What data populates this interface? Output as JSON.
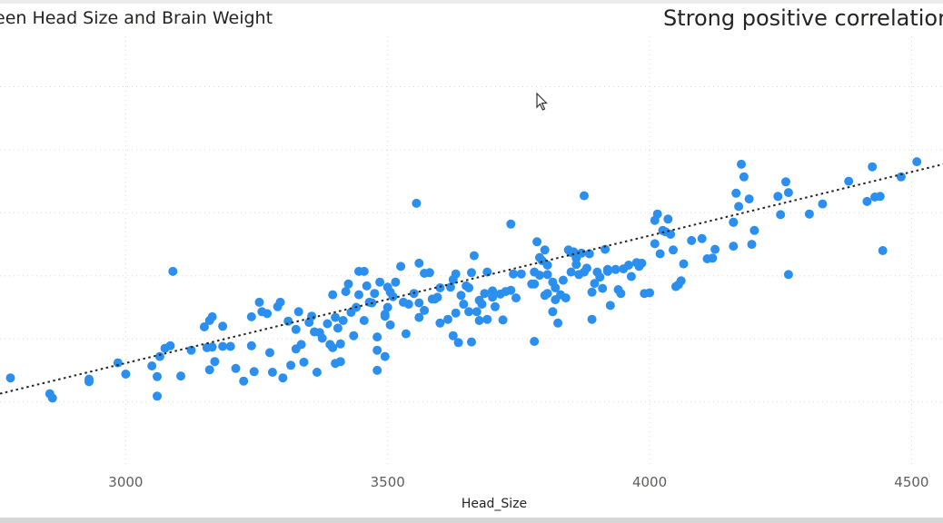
{
  "header": {
    "title": "een Head Size and Brain Weight",
    "subtitle": "Strong positive correlation"
  },
  "chart_data": {
    "type": "scatter",
    "title": "een Head Size and Brain Weight",
    "subtitle": "Strong positive correlation",
    "xlabel": "Head_Size",
    "ylabel": "",
    "xlim": [
      2760,
      4560
    ],
    "ylim": [
      955,
      1635
    ],
    "x_ticks": [
      3000,
      3500,
      4000,
      4500
    ],
    "x_tick_labels": [
      "3000",
      "3500",
      "4000",
      "4500"
    ],
    "y_gridlines": [
      1055,
      1155,
      1255,
      1355,
      1455,
      1555
    ],
    "grid": true,
    "trendline": {
      "style": "dotted",
      "x": [
        2750,
        4560
      ],
      "y": [
        1066,
        1432
      ]
    },
    "series": [
      {
        "color": "#2b8ff0",
        "points": [
          [
            2780,
            1093
          ],
          [
            2855,
            1068
          ],
          [
            2860,
            1061
          ],
          [
            2930,
            1091
          ],
          [
            2930,
            1087
          ],
          [
            2985,
            1117
          ],
          [
            3000,
            1099
          ],
          [
            3060,
            1064
          ],
          [
            3060,
            1095
          ],
          [
            3085,
            1144
          ],
          [
            3065,
            1127
          ],
          [
            3050,
            1112
          ],
          [
            3075,
            1140
          ],
          [
            3090,
            1262
          ],
          [
            3105,
            1096
          ],
          [
            3125,
            1137
          ],
          [
            3150,
            1174
          ],
          [
            3155,
            1141
          ],
          [
            3160,
            1106
          ],
          [
            3160,
            1184
          ],
          [
            3165,
            1190
          ],
          [
            3170,
            1119
          ],
          [
            3165,
            1142
          ],
          [
            3185,
            1175
          ],
          [
            3185,
            1143
          ],
          [
            3200,
            1143
          ],
          [
            3210,
            1108
          ],
          [
            3225,
            1088
          ],
          [
            3240,
            1190
          ],
          [
            3240,
            1144
          ],
          [
            3245,
            1103
          ],
          [
            3255,
            1213
          ],
          [
            3260,
            1198
          ],
          [
            3270,
            1195
          ],
          [
            3275,
            1133
          ],
          [
            3280,
            1102
          ],
          [
            3290,
            1206
          ],
          [
            3295,
            1213
          ],
          [
            3300,
            1093
          ],
          [
            3310,
            1183
          ],
          [
            3315,
            1113
          ],
          [
            3325,
            1139
          ],
          [
            3325,
            1170
          ],
          [
            3330,
            1198
          ],
          [
            3335,
            1146
          ],
          [
            3340,
            1118
          ],
          [
            3350,
            1181
          ],
          [
            3355,
            1191
          ],
          [
            3360,
            1166
          ],
          [
            3365,
            1102
          ],
          [
            3370,
            1165
          ],
          [
            3375,
            1156
          ],
          [
            3385,
            1179
          ],
          [
            3390,
            1146
          ],
          [
            3395,
            1225
          ],
          [
            3395,
            1141
          ],
          [
            3400,
            1116
          ],
          [
            3400,
            1189
          ],
          [
            3405,
            1172
          ],
          [
            3410,
            1119
          ],
          [
            3410,
            1147
          ],
          [
            3415,
            1184
          ],
          [
            3420,
            1230
          ],
          [
            3425,
            1242
          ],
          [
            3430,
            1197
          ],
          [
            3435,
            1160
          ],
          [
            3440,
            1205
          ],
          [
            3445,
            1262
          ],
          [
            3445,
            1225
          ],
          [
            3455,
            1262
          ],
          [
            3455,
            1184
          ],
          [
            3460,
            1239
          ],
          [
            3465,
            1213
          ],
          [
            3470,
            1212
          ],
          [
            3475,
            1227
          ],
          [
            3480,
            1137
          ],
          [
            3480,
            1105
          ],
          [
            3480,
            1158
          ],
          [
            3485,
            1245
          ],
          [
            3495,
            1127
          ],
          [
            3495,
            1191
          ],
          [
            3495,
            1194
          ],
          [
            3500,
            1205
          ],
          [
            3500,
            1237
          ],
          [
            3505,
            1229
          ],
          [
            3505,
            1177
          ],
          [
            3510,
            1222
          ],
          [
            3515,
            1245
          ],
          [
            3525,
            1270
          ],
          [
            3530,
            1213
          ],
          [
            3535,
            1163
          ],
          [
            3540,
            1210
          ],
          [
            3550,
            1227
          ],
          [
            3555,
            1370
          ],
          [
            3560,
            1189
          ],
          [
            3560,
            1212
          ],
          [
            3560,
            1275
          ],
          [
            3570,
            1259
          ],
          [
            3570,
            1200
          ],
          [
            3580,
            1260
          ],
          [
            3585,
            1218
          ],
          [
            3590,
            1218
          ],
          [
            3595,
            1221
          ],
          [
            3600,
            1236
          ],
          [
            3600,
            1180
          ],
          [
            3615,
            1186
          ],
          [
            3620,
            1237
          ],
          [
            3625,
            1249
          ],
          [
            3625,
            1160
          ],
          [
            3630,
            1258
          ],
          [
            3630,
            1196
          ],
          [
            3635,
            1149
          ],
          [
            3640,
            1224
          ],
          [
            3645,
            1210
          ],
          [
            3650,
            1239
          ],
          [
            3655,
            1236
          ],
          [
            3655,
            1198
          ],
          [
            3660,
            1260
          ],
          [
            3660,
            1150
          ],
          [
            3665,
            1287
          ],
          [
            3670,
            1198
          ],
          [
            3675,
            1216
          ],
          [
            3675,
            1184
          ],
          [
            3680,
            1210
          ],
          [
            3685,
            1227
          ],
          [
            3690,
            1261
          ],
          [
            3690,
            1186
          ],
          [
            3700,
            1231
          ],
          [
            3700,
            1221
          ],
          [
            3705,
            1206
          ],
          [
            3715,
            1226
          ],
          [
            3720,
            1185
          ],
          [
            3725,
            1230
          ],
          [
            3735,
            1337
          ],
          [
            3735,
            1232
          ],
          [
            3740,
            1258
          ],
          [
            3745,
            1220
          ],
          [
            3755,
            1258
          ],
          [
            3775,
            1242
          ],
          [
            3780,
            1242
          ],
          [
            3780,
            1151
          ],
          [
            3780,
            1261
          ],
          [
            3785,
            1309
          ],
          [
            3790,
            1256
          ],
          [
            3790,
            1284
          ],
          [
            3795,
            1279
          ],
          [
            3800,
            1224
          ],
          [
            3800,
            1296
          ],
          [
            3805,
            1272
          ],
          [
            3805,
            1227
          ],
          [
            3805,
            1257
          ],
          [
            3815,
            1198
          ],
          [
            3815,
            1245
          ],
          [
            3820,
            1217
          ],
          [
            3820,
            1236
          ],
          [
            3825,
            1180
          ],
          [
            3830,
            1225
          ],
          [
            3835,
            1248
          ],
          [
            3840,
            1220
          ],
          [
            3845,
            1296
          ],
          [
            3850,
            1261
          ],
          [
            3850,
            1292
          ],
          [
            3855,
            1293
          ],
          [
            3860,
            1283
          ],
          [
            3860,
            1273
          ],
          [
            3865,
            1257
          ],
          [
            3870,
            1291
          ],
          [
            3875,
            1382
          ],
          [
            3875,
            1261
          ],
          [
            3880,
            1267
          ],
          [
            3885,
            1290
          ],
          [
            3890,
            1229
          ],
          [
            3890,
            1186
          ],
          [
            3895,
            1243
          ],
          [
            3900,
            1261
          ],
          [
            3905,
            1253
          ],
          [
            3910,
            1235
          ],
          [
            3915,
            1297
          ],
          [
            3920,
            1265
          ],
          [
            3920,
            1262
          ],
          [
            3925,
            1208
          ],
          [
            3935,
            1265
          ],
          [
            3940,
            1233
          ],
          [
            3945,
            1227
          ],
          [
            3950,
            1266
          ],
          [
            3960,
            1272
          ],
          [
            3965,
            1254
          ],
          [
            3975,
            1276
          ],
          [
            3980,
            1270
          ],
          [
            3985,
            1275
          ],
          [
            3990,
            1227
          ],
          [
            4000,
            1228
          ],
          [
            4010,
            1306
          ],
          [
            4010,
            1343
          ],
          [
            4015,
            1353
          ],
          [
            4020,
            1290
          ],
          [
            4025,
            1327
          ],
          [
            4030,
            1325
          ],
          [
            4035,
            1345
          ],
          [
            4040,
            1321
          ],
          [
            4045,
            1296
          ],
          [
            4050,
            1238
          ],
          [
            4055,
            1241
          ],
          [
            4060,
            1247
          ],
          [
            4065,
            1274
          ],
          [
            4080,
            1311
          ],
          [
            4100,
            1314
          ],
          [
            4110,
            1282
          ],
          [
            4120,
            1283
          ],
          [
            4125,
            1297
          ],
          [
            4160,
            1302
          ],
          [
            4160,
            1340
          ],
          [
            4160,
            1340
          ],
          [
            4165,
            1386
          ],
          [
            4170,
            1365
          ],
          [
            4175,
            1432
          ],
          [
            4180,
            1412
          ],
          [
            4190,
            1377
          ],
          [
            4195,
            1305
          ],
          [
            4200,
            1327
          ],
          [
            4245,
            1381
          ],
          [
            4250,
            1352
          ],
          [
            4260,
            1404
          ],
          [
            4265,
            1387
          ],
          [
            4265,
            1257
          ],
          [
            4305,
            1353
          ],
          [
            4330,
            1369
          ],
          [
            4380,
            1405
          ],
          [
            4415,
            1373
          ],
          [
            4425,
            1428
          ],
          [
            4430,
            1380
          ],
          [
            4440,
            1381
          ],
          [
            4445,
            1295
          ],
          [
            4480,
            1412
          ],
          [
            4510,
            1436
          ]
        ]
      }
    ]
  }
}
